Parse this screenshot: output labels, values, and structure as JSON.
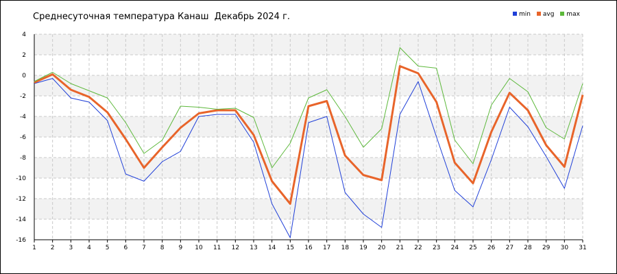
{
  "title": "Среднесуточная температура Канаш  Декабрь 2024 г.",
  "colors": {
    "min": "#1f3fd8",
    "avg": "#e8642a",
    "max": "#5cb83a",
    "grid": "#c8c8c8",
    "band": "#f2f2f2",
    "axis": "#000000"
  },
  "chart_data": {
    "type": "line",
    "title": "Среднесуточная температура Канаш  Декабрь 2024 г.",
    "xlabel": "",
    "ylabel": "",
    "x": [
      1,
      2,
      3,
      4,
      5,
      6,
      7,
      8,
      9,
      10,
      11,
      12,
      13,
      14,
      15,
      16,
      17,
      18,
      19,
      20,
      21,
      22,
      23,
      24,
      25,
      26,
      27,
      28,
      29,
      30,
      31
    ],
    "x_ticks": [
      "1",
      "2",
      "3",
      "4",
      "5",
      "6",
      "7",
      "8",
      "9",
      "10",
      "11",
      "12",
      "13",
      "14",
      "15",
      "16",
      "17",
      "18",
      "19",
      "20",
      "21",
      "22",
      "23",
      "24",
      "25",
      "26",
      "27",
      "28",
      "29",
      "30",
      "31"
    ],
    "ylim": [
      -16,
      4
    ],
    "y_ticks": [
      "4",
      "2",
      "0",
      "-2",
      "-4",
      "-6",
      "-8",
      "-10",
      "-12",
      "-14",
      "-16"
    ],
    "grid": true,
    "legend_position": "top-right",
    "series": [
      {
        "name": "min",
        "values": [
          -0.8,
          -0.3,
          -2.2,
          -2.6,
          -4.4,
          -9.6,
          -10.3,
          -8.4,
          -7.4,
          -4.0,
          -3.8,
          -3.8,
          -6.5,
          -12.5,
          -15.8,
          -4.6,
          -4.0,
          -11.4,
          -13.5,
          -14.8,
          -3.8,
          -0.6,
          -6.0,
          -11.2,
          -12.8,
          -8.2,
          -3.1,
          -5.0,
          -7.9,
          -11.0,
          -4.9
        ]
      },
      {
        "name": "avg",
        "values": [
          -0.7,
          0.1,
          -1.4,
          -2.1,
          -3.6,
          -6.2,
          -9.0,
          -7.0,
          -5.1,
          -3.7,
          -3.4,
          -3.4,
          -5.8,
          -10.3,
          -12.5,
          -3.0,
          -2.5,
          -7.8,
          -9.7,
          -10.2,
          0.9,
          0.2,
          -2.6,
          -8.5,
          -10.5,
          -5.5,
          -1.7,
          -3.4,
          -6.8,
          -8.9,
          -1.9
        ]
      },
      {
        "name": "max",
        "values": [
          -0.6,
          0.3,
          -0.8,
          -1.5,
          -2.2,
          -4.6,
          -7.6,
          -6.3,
          -3.0,
          -3.1,
          -3.3,
          -3.2,
          -4.1,
          -9.0,
          -6.6,
          -2.2,
          -1.4,
          -4.0,
          -7.0,
          -5.2,
          2.7,
          0.9,
          0.7,
          -6.3,
          -8.6,
          -2.9,
          -0.3,
          -1.6,
          -5.1,
          -6.2,
          -0.8
        ]
      }
    ]
  }
}
